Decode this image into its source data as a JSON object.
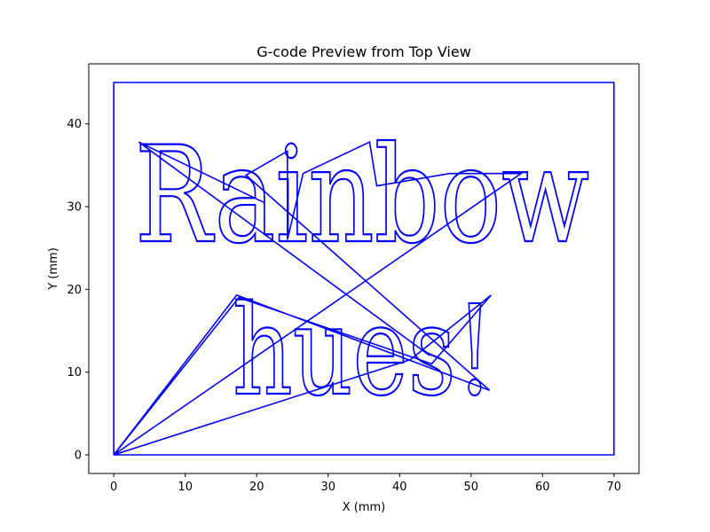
{
  "chart_data": {
    "type": "line",
    "title": "G-code Preview from Top View",
    "xlabel": "X (mm)",
    "ylabel": "Y (mm)",
    "xlim": [
      -3.5,
      73.5
    ],
    "ylim": [
      -2.25,
      47.25
    ],
    "xticks": [
      0,
      10,
      20,
      30,
      40,
      50,
      60,
      70
    ],
    "yticks": [
      0,
      10,
      20,
      30,
      40
    ],
    "grid": false,
    "line_color": "#0000ff",
    "engraved_text": [
      "Rainbow",
      "hues!"
    ],
    "series": [
      {
        "type": "border",
        "points": [
          [
            0,
            0
          ],
          [
            70,
            0
          ],
          [
            70,
            45
          ],
          [
            0,
            45
          ],
          [
            0,
            0
          ]
        ]
      },
      {
        "type": "travel",
        "points": [
          [
            0,
            0
          ],
          [
            17.2,
            19.3
          ],
          [
            52.6,
            7.8
          ],
          [
            18.5,
            33.8
          ],
          [
            24.3,
            36.7
          ],
          [
            24.3,
            26.0
          ],
          [
            26.5,
            34.0
          ],
          [
            35.8,
            37.8
          ],
          [
            36.8,
            32.5
          ],
          [
            47.0,
            34.0
          ],
          [
            57.0,
            34.0
          ],
          [
            0,
            0
          ],
          [
            41.5,
            11.5
          ],
          [
            52.8,
            19.3
          ],
          [
            44.5,
            11.0
          ],
          [
            17.5,
            19.0
          ],
          [
            0,
            0
          ]
        ]
      },
      {
        "type": "travel",
        "points": [
          [
            3.5,
            37.8
          ],
          [
            44.2,
            12.0
          ],
          [
            3.5,
            37.8
          ],
          [
            21.0,
            30.5
          ],
          [
            3.5,
            37.8
          ]
        ]
      }
    ]
  }
}
